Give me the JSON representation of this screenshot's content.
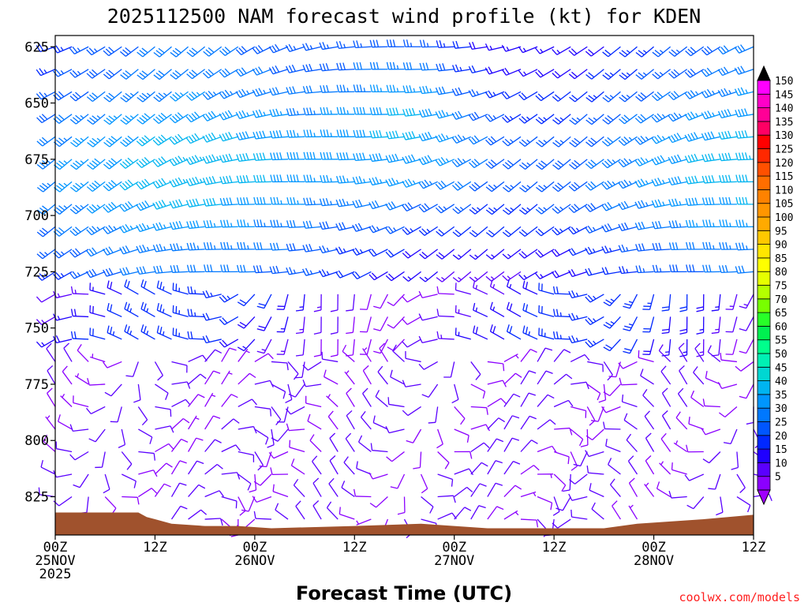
{
  "chart_data": {
    "type": "wind-barb-profile",
    "title": "2025112500 NAM forecast wind profile (kt) for KDEN",
    "xlabel": "Forecast Time (UTC)",
    "ylabel": "",
    "credit": "coolwx.com/models",
    "units": "kt",
    "x_start": "2025-11-25 00Z",
    "x_range_hours": [
      0,
      84
    ],
    "time_step_hours": 2,
    "x_ticks": [
      {
        "hour": 0,
        "line1": "00Z",
        "line2": "25NOV",
        "line3": "2025"
      },
      {
        "hour": 12,
        "line1": "12Z",
        "line2": "",
        "line3": ""
      },
      {
        "hour": 24,
        "line1": "00Z",
        "line2": "26NOV",
        "line3": ""
      },
      {
        "hour": 36,
        "line1": "12Z",
        "line2": "",
        "line3": ""
      },
      {
        "hour": 48,
        "line1": "00Z",
        "line2": "27NOV",
        "line3": ""
      },
      {
        "hour": 60,
        "line1": "12Z",
        "line2": "",
        "line3": ""
      },
      {
        "hour": 72,
        "line1": "00Z",
        "line2": "28NOV",
        "line3": ""
      },
      {
        "hour": 84,
        "line1": "12Z",
        "line2": "",
        "line3": ""
      }
    ],
    "y_range_hPa": [
      620,
      842
    ],
    "y_ticks": [
      625,
      650,
      675,
      700,
      725,
      750,
      775,
      800,
      825
    ],
    "pressure_levels": [
      625,
      635,
      645,
      655,
      665,
      675,
      685,
      695,
      705,
      715,
      725,
      735,
      745,
      755,
      765,
      775,
      785,
      795,
      805,
      815,
      825,
      835
    ],
    "terrain_surface_hPa": [
      {
        "hour": 0,
        "p": 832
      },
      {
        "hour": 10,
        "p": 832
      },
      {
        "hour": 11,
        "p": 834
      },
      {
        "hour": 12,
        "p": 835
      },
      {
        "hour": 14,
        "p": 837
      },
      {
        "hour": 18,
        "p": 838
      },
      {
        "hour": 22,
        "p": 838
      },
      {
        "hour": 26,
        "p": 839
      },
      {
        "hour": 36,
        "p": 838
      },
      {
        "hour": 44,
        "p": 837
      },
      {
        "hour": 48,
        "p": 838
      },
      {
        "hour": 52,
        "p": 839
      },
      {
        "hour": 66,
        "p": 839
      },
      {
        "hour": 70,
        "p": 837
      },
      {
        "hour": 74,
        "p": 836
      },
      {
        "hour": 78,
        "p": 835
      },
      {
        "hour": 84,
        "p": 833
      }
    ],
    "upper_jet_core": {
      "hour": 44,
      "p": 650,
      "speed_kt": 50
    },
    "wind_field_note": "westerly/southwesterly 30-50 kt above 725 hPa with a 45-50 kt core near 650-690 hPa around 27NOV 00Z; light variable winds 5-15 kt below 750 hPa",
    "colorbar": {
      "min": 5,
      "max": 150,
      "step": 5,
      "labels": [
        "150",
        "145",
        "140",
        "135",
        "130",
        "125",
        "120",
        "115",
        "110",
        "105",
        "100",
        "95",
        "90",
        "85",
        "80",
        "75",
        "70",
        "65",
        "60",
        "55",
        "50",
        "45",
        "40",
        "35",
        "30",
        "25",
        "20",
        "15",
        "10",
        "5"
      ],
      "colors": [
        "#8b00ff",
        "#5a00ff",
        "#1f00ff",
        "#0028ff",
        "#0056ff",
        "#0078ff",
        "#0096ff",
        "#00b4f0",
        "#00d7d2",
        "#00f0b4",
        "#00ff8c",
        "#00f050",
        "#28ff28",
        "#78ff00",
        "#b4ff00",
        "#e6ff00",
        "#ffff00",
        "#ffe600",
        "#ffc800",
        "#ffaa00",
        "#ff9600",
        "#ff8200",
        "#ff6e00",
        "#ff5000",
        "#ff2800",
        "#ff0000",
        "#ff0064",
        "#ff0096",
        "#ff00c8",
        "#ff00ff"
      ],
      "end_min_color": "#a000ff",
      "end_max_color": "#000000"
    },
    "terrain_color": "#a0522d"
  }
}
